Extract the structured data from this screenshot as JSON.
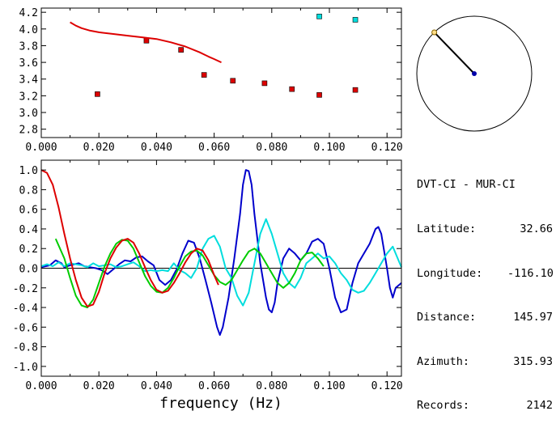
{
  "chart_data": [
    {
      "type": "scatter",
      "xlim": [
        0,
        0.125
      ],
      "ylim": [
        2.7,
        4.25
      ],
      "xticks": [
        "0.000",
        "0.020",
        "0.040",
        "0.060",
        "0.080",
        "0.100",
        "0.120"
      ],
      "yticks": [
        "2.8",
        "3.0",
        "3.2",
        "3.4",
        "3.6",
        "3.8",
        "4.0",
        "4.2"
      ],
      "series": [
        {
          "kind": "points",
          "color": "#dd0000",
          "x": [
            0.0195,
            0.0365,
            0.0485,
            0.0565,
            0.0665,
            0.0775,
            0.087,
            0.0965,
            0.109
          ],
          "y": [
            3.22,
            3.86,
            3.75,
            3.45,
            3.38,
            3.35,
            3.28,
            3.21,
            3.27
          ]
        },
        {
          "kind": "points",
          "color": "#00dddd",
          "x": [
            0.0965,
            0.109
          ],
          "y": [
            4.15,
            4.11
          ]
        },
        {
          "kind": "line",
          "color": "#dd0000",
          "x": [
            0.01,
            0.012,
            0.014,
            0.017,
            0.02,
            0.025,
            0.03,
            0.035,
            0.04,
            0.045,
            0.05,
            0.055,
            0.058,
            0.06,
            0.0625
          ],
          "y": [
            4.08,
            4.04,
            4.01,
            3.98,
            3.96,
            3.94,
            3.92,
            3.9,
            3.88,
            3.84,
            3.79,
            3.72,
            3.67,
            3.64,
            3.6
          ]
        }
      ]
    },
    {
      "type": "line",
      "xlabel": "frequency (Hz)",
      "xlim": [
        0,
        0.125
      ],
      "ylim": [
        -1.1,
        1.1
      ],
      "xticks": [
        "0.000",
        "0.020",
        "0.040",
        "0.060",
        "0.080",
        "0.100",
        "0.120"
      ],
      "yticks": [
        "1.0",
        "0.8",
        "0.6",
        "0.4",
        "0.2",
        "0.0",
        "-0.2",
        "-0.4",
        "-0.6",
        "-0.8",
        "-1.0"
      ],
      "series": [
        {
          "color": "#0000cc",
          "x": [
            0.0,
            0.003,
            0.005,
            0.007,
            0.008,
            0.01,
            0.013,
            0.015,
            0.017,
            0.019,
            0.021,
            0.023,
            0.025,
            0.027,
            0.029,
            0.031,
            0.033,
            0.035,
            0.037,
            0.039,
            0.041,
            0.043,
            0.045,
            0.047,
            0.049,
            0.051,
            0.053,
            0.055,
            0.057,
            0.059,
            0.061,
            0.062,
            0.063,
            0.065,
            0.067,
            0.069,
            0.07,
            0.071,
            0.072,
            0.073,
            0.074,
            0.076,
            0.078,
            0.079,
            0.08,
            0.081,
            0.082,
            0.084,
            0.086,
            0.088,
            0.09,
            0.092,
            0.094,
            0.096,
            0.098,
            0.1,
            0.102,
            0.104,
            0.106,
            0.108,
            0.11,
            0.112,
            0.114,
            0.116,
            0.117,
            0.118,
            0.12,
            0.121,
            0.122,
            0.123,
            0.125
          ],
          "y": [
            0.01,
            0.03,
            0.08,
            0.05,
            0.01,
            0.03,
            0.05,
            0.02,
            0.01,
            0.0,
            -0.02,
            -0.06,
            -0.01,
            0.04,
            0.08,
            0.07,
            0.11,
            0.12,
            0.07,
            0.03,
            -0.12,
            -0.17,
            -0.12,
            -0.01,
            0.15,
            0.28,
            0.26,
            0.1,
            -0.12,
            -0.35,
            -0.6,
            -0.68,
            -0.6,
            -0.3,
            0.1,
            0.55,
            0.85,
            1.0,
            0.99,
            0.85,
            0.55,
            0.05,
            -0.3,
            -0.42,
            -0.45,
            -0.35,
            -0.15,
            0.1,
            0.2,
            0.15,
            0.08,
            0.15,
            0.27,
            0.3,
            0.25,
            0.0,
            -0.3,
            -0.45,
            -0.42,
            -0.15,
            0.05,
            0.15,
            0.25,
            0.4,
            0.42,
            0.35,
            0.0,
            -0.2,
            -0.3,
            -0.2,
            -0.15
          ]
        },
        {
          "color": "#00dddd",
          "x": [
            0.0,
            0.002,
            0.004,
            0.006,
            0.008,
            0.01,
            0.012,
            0.014,
            0.016,
            0.018,
            0.02,
            0.022,
            0.024,
            0.026,
            0.028,
            0.03,
            0.032,
            0.034,
            0.036,
            0.038,
            0.04,
            0.042,
            0.044,
            0.046,
            0.048,
            0.05,
            0.052,
            0.054,
            0.056,
            0.058,
            0.06,
            0.062,
            0.064,
            0.066,
            0.068,
            0.07,
            0.072,
            0.074,
            0.076,
            0.078,
            0.08,
            0.082,
            0.084,
            0.086,
            0.088,
            0.09,
            0.092,
            0.094,
            0.096,
            0.098,
            0.1,
            0.102,
            0.104,
            0.106,
            0.108,
            0.11,
            0.112,
            0.114,
            0.116,
            0.118,
            0.12,
            0.122,
            0.124,
            0.125
          ],
          "y": [
            0.02,
            0.04,
            0.02,
            0.06,
            0.02,
            0.05,
            0.04,
            0.03,
            0.01,
            0.05,
            0.02,
            0.03,
            0.04,
            0.01,
            0.02,
            0.04,
            0.06,
            0.02,
            -0.03,
            -0.02,
            -0.03,
            -0.02,
            -0.03,
            0.05,
            -0.02,
            -0.05,
            -0.1,
            0.0,
            0.2,
            0.3,
            0.33,
            0.22,
            0.0,
            -0.1,
            -0.28,
            -0.38,
            -0.25,
            0.05,
            0.35,
            0.5,
            0.35,
            0.15,
            -0.05,
            -0.15,
            -0.2,
            -0.1,
            0.05,
            0.1,
            0.15,
            0.1,
            0.12,
            0.05,
            -0.05,
            -0.12,
            -0.22,
            -0.25,
            -0.23,
            -0.15,
            -0.05,
            0.05,
            0.15,
            0.22,
            0.08,
            0.01
          ]
        },
        {
          "color": "#00cc00",
          "x": [
            0.005,
            0.008,
            0.01,
            0.012,
            0.014,
            0.016,
            0.018,
            0.02,
            0.022,
            0.024,
            0.026,
            0.028,
            0.03,
            0.032,
            0.034,
            0.036,
            0.038,
            0.04,
            0.042,
            0.044,
            0.046,
            0.048,
            0.05,
            0.052,
            0.054,
            0.056,
            0.058,
            0.06,
            0.062,
            0.064,
            0.066,
            0.068,
            0.07,
            0.072,
            0.074,
            0.076,
            0.078,
            0.08,
            0.082,
            0.084,
            0.086,
            0.088,
            0.09,
            0.092,
            0.094,
            0.096,
            0.098
          ],
          "y": [
            0.3,
            0.1,
            -0.1,
            -0.28,
            -0.38,
            -0.4,
            -0.32,
            -0.15,
            0.02,
            0.15,
            0.25,
            0.29,
            0.28,
            0.2,
            0.06,
            -0.08,
            -0.18,
            -0.24,
            -0.25,
            -0.2,
            -0.1,
            0.02,
            0.12,
            0.17,
            0.18,
            0.13,
            0.03,
            -0.07,
            -0.14,
            -0.17,
            -0.12,
            -0.02,
            0.08,
            0.17,
            0.2,
            0.15,
            0.05,
            -0.05,
            -0.15,
            -0.2,
            -0.15,
            -0.05,
            0.08,
            0.15,
            0.16,
            0.1,
            0.02
          ]
        },
        {
          "color": "#dd0000",
          "x": [
            0.0,
            0.002,
            0.004,
            0.006,
            0.008,
            0.01,
            0.012,
            0.014,
            0.016,
            0.018,
            0.02,
            0.022,
            0.024,
            0.026,
            0.028,
            0.03,
            0.032,
            0.034,
            0.036,
            0.038,
            0.04,
            0.042,
            0.044,
            0.046,
            0.048,
            0.05,
            0.052,
            0.054,
            0.056,
            0.058,
            0.06,
            0.0615
          ],
          "y": [
            1.0,
            0.97,
            0.85,
            0.62,
            0.35,
            0.1,
            -0.12,
            -0.3,
            -0.39,
            -0.37,
            -0.24,
            -0.05,
            0.1,
            0.21,
            0.28,
            0.3,
            0.26,
            0.15,
            0.01,
            -0.12,
            -0.22,
            -0.25,
            -0.23,
            -0.15,
            -0.05,
            0.06,
            0.15,
            0.2,
            0.18,
            0.08,
            -0.07,
            -0.17
          ]
        }
      ]
    }
  ],
  "polar": {
    "azimuth_deg": 315.93,
    "line_color": "#000000",
    "center_color": "#0000aa",
    "end_color": "#ffdd88"
  },
  "info": {
    "title": "DVT-CI - MUR-CI",
    "rows": [
      {
        "label": "Latitude:",
        "value": "32.66"
      },
      {
        "label": "Longitude:",
        "value": "-116.10"
      },
      {
        "label": "Distance:",
        "value": "145.97"
      },
      {
        "label": "Azimuth:",
        "value": "315.93"
      },
      {
        "label": "Records:",
        "value": "2142"
      }
    ]
  }
}
